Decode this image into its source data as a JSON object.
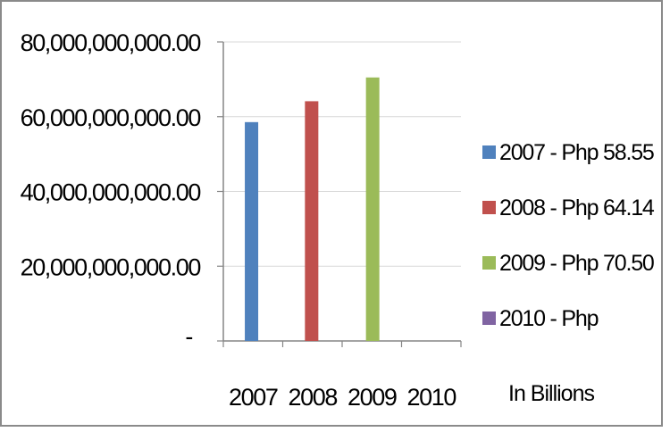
{
  "chart_data": {
    "type": "bar",
    "categories": [
      "2007",
      "2008",
      "2009",
      "2010"
    ],
    "series": [
      {
        "name": "2007 - Php 58.55",
        "color": "#4f81bd",
        "values": [
          58550000000,
          0,
          0,
          0
        ]
      },
      {
        "name": "2008 - Php 64.14",
        "color": "#c0504d",
        "values": [
          0,
          64140000000,
          0,
          0
        ]
      },
      {
        "name": "2009 - Php 70.50",
        "color": "#9bbb59",
        "values": [
          0,
          0,
          70500000000,
          0
        ]
      },
      {
        "name": "2010 - Php",
        "color": "#8064a2",
        "values": [
          0,
          0,
          0,
          0
        ]
      }
    ],
    "y_ticks": [
      {
        "value": 80000000000,
        "label": "80,000,000,000.00"
      },
      {
        "value": 60000000000,
        "label": "60,000,000,000.00"
      },
      {
        "value": 40000000000,
        "label": "40,000,000,000.00"
      },
      {
        "value": 20000000000,
        "label": "20,000,000,000.00"
      },
      {
        "value": 0,
        "label": "-"
      }
    ],
    "ylim": [
      0,
      80000000000
    ],
    "grid": true,
    "legend_position": "right",
    "annotation": "In Billions"
  }
}
